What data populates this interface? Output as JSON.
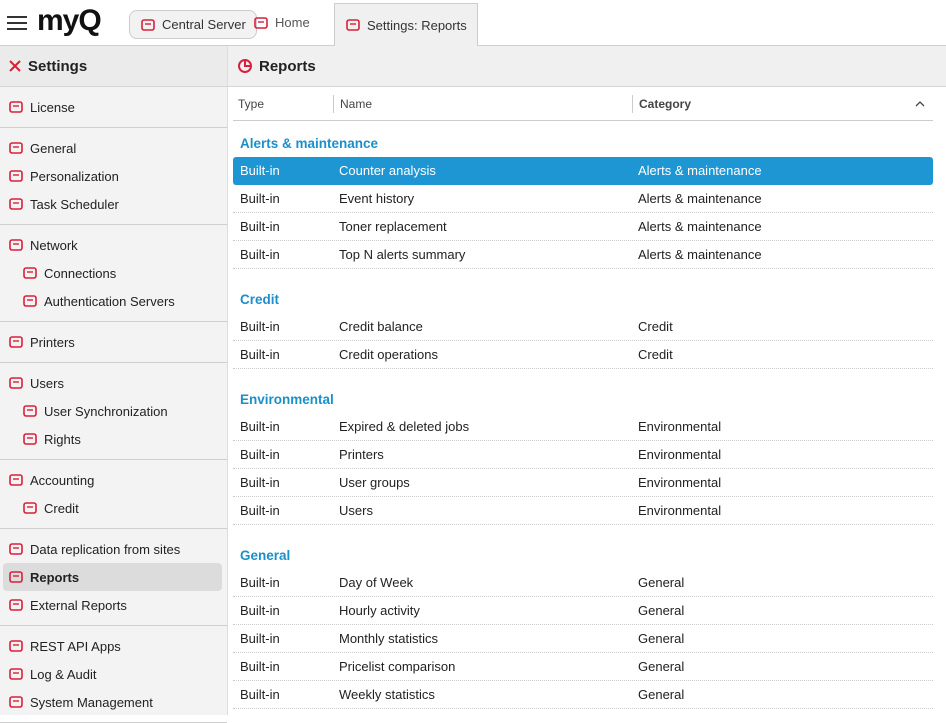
{
  "header": {
    "logo": "myQ",
    "tabs": [
      {
        "label": "Central Server",
        "kind": "server"
      },
      {
        "label": "Home",
        "kind": "home"
      },
      {
        "label": "Settings: Reports",
        "kind": "page",
        "active": true
      }
    ]
  },
  "sidebar": {
    "title": "Settings",
    "groups": [
      {
        "items": [
          {
            "label": "License"
          }
        ]
      },
      {
        "items": [
          {
            "label": "General"
          },
          {
            "label": "Personalization"
          },
          {
            "label": "Task Scheduler"
          }
        ]
      },
      {
        "items": [
          {
            "label": "Network"
          },
          {
            "label": "Connections",
            "sub": true
          },
          {
            "label": "Authentication Servers",
            "sub": true
          }
        ]
      },
      {
        "items": [
          {
            "label": "Printers"
          }
        ]
      },
      {
        "items": [
          {
            "label": "Users"
          },
          {
            "label": "User Synchronization",
            "sub": true
          },
          {
            "label": "Rights",
            "sub": true
          }
        ]
      },
      {
        "items": [
          {
            "label": "Accounting"
          },
          {
            "label": "Credit",
            "sub": true
          }
        ]
      },
      {
        "items": [
          {
            "label": "Data replication from sites"
          },
          {
            "label": "Reports",
            "selected": true
          },
          {
            "label": "External Reports"
          }
        ]
      },
      {
        "items": [
          {
            "label": "REST API Apps"
          },
          {
            "label": "Log & Audit"
          },
          {
            "label": "System Management"
          }
        ]
      }
    ]
  },
  "main": {
    "title": "Reports",
    "columns": [
      "Type",
      "Name",
      "Category"
    ],
    "sort_column": 2,
    "groups": [
      {
        "name": "Alerts & maintenance",
        "rows": [
          {
            "cells": [
              "Built-in",
              "Counter analysis",
              "Alerts & maintenance"
            ],
            "selected": true
          },
          {
            "cells": [
              "Built-in",
              "Event history",
              "Alerts & maintenance"
            ]
          },
          {
            "cells": [
              "Built-in",
              "Toner replacement",
              "Alerts & maintenance"
            ]
          },
          {
            "cells": [
              "Built-in",
              "Top N alerts summary",
              "Alerts & maintenance"
            ]
          }
        ]
      },
      {
        "name": "Credit",
        "rows": [
          {
            "cells": [
              "Built-in",
              "Credit balance",
              "Credit"
            ]
          },
          {
            "cells": [
              "Built-in",
              "Credit operations",
              "Credit"
            ]
          }
        ]
      },
      {
        "name": "Environmental",
        "rows": [
          {
            "cells": [
              "Built-in",
              "Expired & deleted jobs",
              "Environmental"
            ]
          },
          {
            "cells": [
              "Built-in",
              "Printers",
              "Environmental"
            ]
          },
          {
            "cells": [
              "Built-in",
              "User groups",
              "Environmental"
            ]
          },
          {
            "cells": [
              "Built-in",
              "Users",
              "Environmental"
            ]
          }
        ]
      },
      {
        "name": "General",
        "rows": [
          {
            "cells": [
              "Built-in",
              "Day of Week",
              "General"
            ]
          },
          {
            "cells": [
              "Built-in",
              "Hourly activity",
              "General"
            ]
          },
          {
            "cells": [
              "Built-in",
              "Monthly statistics",
              "General"
            ]
          },
          {
            "cells": [
              "Built-in",
              "Pricelist comparison",
              "General"
            ]
          },
          {
            "cells": [
              "Built-in",
              "Weekly statistics",
              "General"
            ]
          }
        ]
      }
    ]
  }
}
